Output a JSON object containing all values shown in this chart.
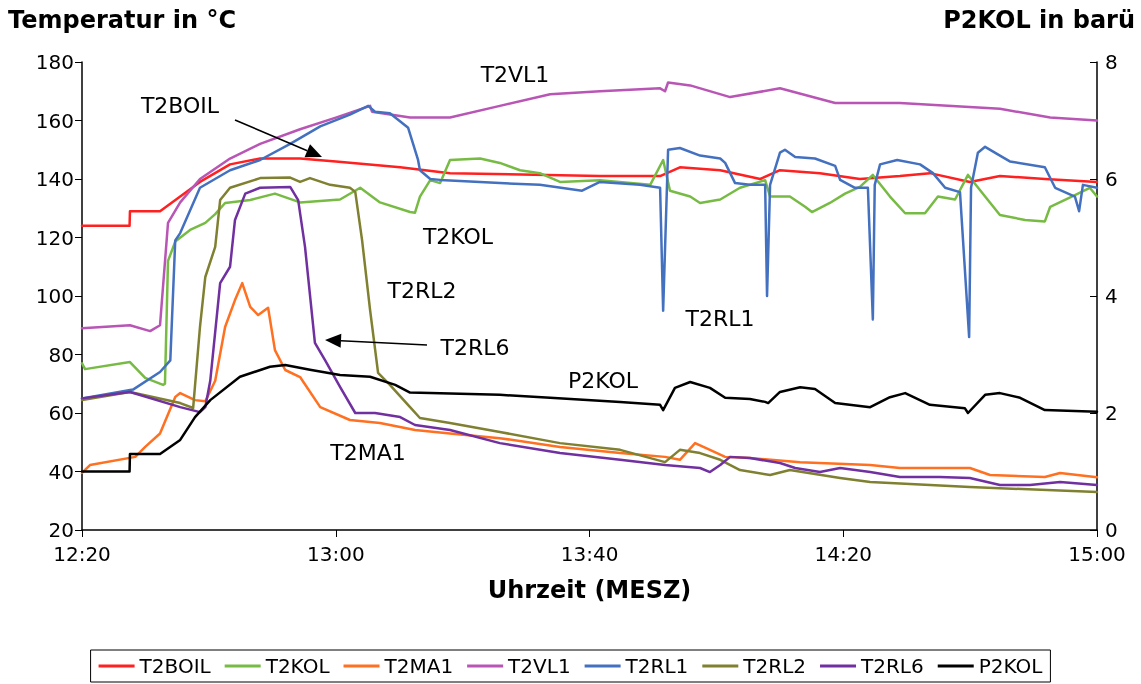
{
  "chart_data": {
    "type": "line",
    "ylabel": "Temperatur in °C",
    "y2label": "P2KOL in barü",
    "xlabel": "Uhrzeit (MESZ)",
    "xlim": [
      12.333,
      15
    ],
    "xticks": [
      {
        "value": 12.333,
        "label": "12:20"
      },
      {
        "value": 13,
        "label": "13:00"
      },
      {
        "value": 13.6667,
        "label": "13:40"
      },
      {
        "value": 14.3333,
        "label": "14:20"
      },
      {
        "value": 15,
        "label": "15:00"
      }
    ],
    "ylim": [
      20,
      180
    ],
    "yticks": [
      20,
      40,
      60,
      80,
      100,
      120,
      140,
      160,
      180
    ],
    "y2lim": [
      0,
      8
    ],
    "y2ticks": [
      0,
      2,
      4,
      6,
      8
    ],
    "grid": false,
    "legend": "bottom",
    "marker": "none",
    "line_style": "solid",
    "annotations": [
      "T2BOIL",
      "T2VL1",
      "T2KOL",
      "T2RL2",
      "T2RL6",
      "T2RL1",
      "P2KOL",
      "T2MA1"
    ],
    "series": [
      {
        "name": "T2BOIL",
        "color": "#ff2020",
        "x": [
          12.333,
          12.458,
          12.459,
          12.538,
          12.591,
          12.643,
          12.722,
          12.801,
          12.906,
          13.0,
          13.169,
          13.3,
          13.694,
          13.852,
          13.904,
          14.01,
          14.115,
          14.167,
          14.272,
          14.377,
          14.482,
          14.561,
          14.666,
          14.745,
          14.863,
          15.0
        ],
        "values": [
          124,
          124,
          129,
          129,
          134,
          139,
          145,
          147,
          147,
          146,
          144,
          142,
          141,
          141,
          144,
          143,
          140,
          143,
          142,
          140,
          141,
          142,
          139,
          141,
          140,
          139
        ]
      },
      {
        "name": "T2KOL",
        "color": "#77bb44",
        "x": [
          12.333,
          12.341,
          12.459,
          12.499,
          12.546,
          12.551,
          12.559,
          12.578,
          12.617,
          12.657,
          12.683,
          12.709,
          12.775,
          12.84,
          12.906,
          13.011,
          13.064,
          13.116,
          13.195,
          13.208,
          13.221,
          13.248,
          13.274,
          13.3,
          13.379,
          13.431,
          13.484,
          13.536,
          13.589,
          13.694,
          13.826,
          13.86,
          13.878,
          13.931,
          13.957,
          14.01,
          14.062,
          14.128,
          14.141,
          14.193,
          14.233,
          14.251,
          14.298,
          14.338,
          14.377,
          14.411,
          14.456,
          14.496,
          14.548,
          14.582,
          14.627,
          14.661,
          14.706,
          14.745,
          14.811,
          14.863,
          14.877,
          14.942,
          14.981,
          15.0
        ],
        "values": [
          77,
          75,
          77.4,
          72,
          69.6,
          70,
          112,
          118.6,
          122.6,
          125,
          128,
          131.8,
          132.8,
          135,
          132,
          133,
          137,
          132,
          128.7,
          128.5,
          134,
          139.6,
          138.6,
          146.5,
          147,
          145.5,
          143,
          142,
          139,
          139.6,
          138,
          146.5,
          136,
          134,
          131.8,
          133,
          137,
          139.6,
          134,
          134,
          130.5,
          128.7,
          131.8,
          135,
          137.3,
          141.4,
          134,
          128.3,
          128.3,
          134,
          133,
          141.4,
          134,
          127.7,
          126,
          125.5,
          130.5,
          134.5,
          137,
          134
        ]
      },
      {
        "name": "T2MA1",
        "color": "#ff7020",
        "x": [
          12.333,
          12.354,
          12.473,
          12.499,
          12.538,
          12.578,
          12.591,
          12.63,
          12.657,
          12.683,
          12.709,
          12.735,
          12.754,
          12.775,
          12.796,
          12.822,
          12.84,
          12.867,
          12.906,
          12.959,
          13.037,
          13.116,
          13.208,
          13.3,
          13.431,
          13.589,
          13.747,
          13.865,
          13.904,
          13.944,
          13.983,
          14.023,
          14.088,
          14.22,
          14.404,
          14.482,
          14.666,
          14.719,
          14.863,
          14.903,
          15.0
        ],
        "values": [
          39.5,
          42.2,
          45,
          48.4,
          53,
          65.5,
          66.8,
          64.4,
          64,
          71,
          89.4,
          98.6,
          104.4,
          96.3,
          93.5,
          96,
          81.5,
          74.7,
          72.3,
          62,
          57.6,
          56.6,
          54.2,
          53,
          51.4,
          48.4,
          46.3,
          45,
          44,
          49.7,
          47.4,
          45,
          44.6,
          43.2,
          42.2,
          41.2,
          41.2,
          38.8,
          38.1,
          39.5,
          38
        ]
      },
      {
        "name": "T2VL1",
        "color": "#b855b5",
        "x": [
          12.333,
          12.459,
          12.512,
          12.538,
          12.559,
          12.591,
          12.643,
          12.722,
          12.801,
          12.906,
          13.0,
          13.09,
          13.095,
          13.195,
          13.3,
          13.431,
          13.563,
          13.694,
          13.852,
          13.865,
          13.873,
          13.931,
          14.036,
          14.167,
          14.312,
          14.482,
          14.745,
          14.877,
          15.0
        ],
        "values": [
          89,
          90,
          88,
          90,
          125,
          132,
          140,
          147,
          152,
          157,
          161,
          165,
          163,
          161,
          161,
          165,
          169,
          170,
          171,
          170,
          173,
          172,
          168,
          171,
          166,
          166,
          164,
          161,
          160
        ]
      },
      {
        "name": "T2RL1",
        "color": "#4470c0",
        "x": [
          12.333,
          12.467,
          12.538,
          12.565,
          12.578,
          12.591,
          12.643,
          12.722,
          12.801,
          12.88,
          12.959,
          13.037,
          13.085,
          13.103,
          13.142,
          13.19,
          13.216,
          13.221,
          13.248,
          13.274,
          13.431,
          13.536,
          13.647,
          13.694,
          13.799,
          13.852,
          13.86,
          13.873,
          13.904,
          13.957,
          14.01,
          14.023,
          14.049,
          14.088,
          14.128,
          14.133,
          14.141,
          14.167,
          14.18,
          14.207,
          14.259,
          14.312,
          14.325,
          14.364,
          14.398,
          14.411,
          14.416,
          14.43,
          14.475,
          14.535,
          14.569,
          14.601,
          14.64,
          14.664,
          14.669,
          14.687,
          14.706,
          14.745,
          14.771,
          14.863,
          14.89,
          14.942,
          14.953,
          14.963,
          15.0
        ],
        "values": [
          65,
          68,
          74,
          78,
          119,
          121.5,
          137,
          143,
          146.5,
          152,
          158,
          162,
          165,
          163,
          162.5,
          157.5,
          146.5,
          143,
          140,
          139.7,
          138.6,
          138,
          136,
          139,
          138,
          137,
          95,
          150,
          150.6,
          148,
          147,
          145.5,
          138.6,
          138,
          138,
          100,
          138,
          149,
          150,
          147.5,
          147,
          144.5,
          139.7,
          137,
          137,
          92,
          138,
          145,
          146.5,
          145,
          142,
          137,
          135.5,
          86,
          137,
          149,
          151,
          148,
          146,
          144,
          137,
          134,
          129,
          138,
          137
        ]
      },
      {
        "name": "T2RL2",
        "color": "#7f8030",
        "x": [
          12.333,
          12.459,
          12.591,
          12.625,
          12.643,
          12.657,
          12.683,
          12.696,
          12.722,
          12.801,
          12.88,
          12.906,
          12.932,
          12.985,
          13.037,
          13.051,
          13.069,
          13.09,
          13.111,
          13.142,
          13.195,
          13.221,
          13.3,
          13.431,
          13.589,
          13.747,
          13.865,
          13.904,
          13.957,
          14.01,
          14.062,
          14.141,
          14.193,
          14.325,
          14.404,
          14.666,
          15.0
        ],
        "values": [
          64.4,
          67.2,
          63.4,
          61.7,
          89.4,
          106.5,
          116.8,
          132.8,
          137,
          140.3,
          140.5,
          139,
          140.3,
          138,
          137,
          135.6,
          119,
          95.2,
          73.7,
          69.6,
          62,
          58.3,
          56.6,
          53.5,
          49.7,
          47.4,
          43.2,
          47.4,
          46.3,
          44,
          40.5,
          38.8,
          40.5,
          37.8,
          36.4,
          34.7,
          33
        ]
      },
      {
        "name": "T2RL6",
        "color": "#7030a0",
        "x": [
          12.333,
          12.459,
          12.591,
          12.643,
          12.657,
          12.67,
          12.696,
          12.722,
          12.735,
          12.762,
          12.801,
          12.88,
          12.901,
          12.919,
          12.945,
          12.972,
          13.011,
          13.051,
          13.103,
          13.169,
          13.208,
          13.3,
          13.431,
          13.589,
          13.747,
          13.865,
          13.957,
          13.983,
          14.01,
          14.036,
          14.088,
          14.167,
          14.207,
          14.272,
          14.325,
          14.404,
          14.482,
          14.587,
          14.666,
          14.745,
          14.824,
          14.903,
          15.0
        ],
        "values": [
          65,
          67.2,
          62,
          60.3,
          62,
          71,
          104.4,
          110,
          126,
          135,
          137,
          137.3,
          132.8,
          116.8,
          84,
          78,
          68.9,
          60,
          60,
          58.6,
          55.9,
          54.2,
          49.7,
          46.3,
          44,
          42.2,
          41.2,
          39.8,
          42.2,
          45,
          44.6,
          42.9,
          41.2,
          39.8,
          41.2,
          39.8,
          38.1,
          38.1,
          37.8,
          35.4,
          35.4,
          36.4,
          35.4
        ]
      },
      {
        "name": "P2KOL",
        "color": "#000000",
        "axis": "y2",
        "x": [
          12.333,
          12.458,
          12.459,
          12.538,
          12.591,
          12.63,
          12.67,
          12.748,
          12.827,
          12.867,
          12.932,
          13.011,
          13.09,
          13.156,
          13.195,
          13.248,
          13.431,
          13.563,
          13.747,
          13.852,
          13.86,
          13.891,
          13.931,
          13.983,
          14.023,
          14.088,
          14.128,
          14.136,
          14.167,
          14.22,
          14.259,
          14.312,
          14.404,
          14.456,
          14.496,
          14.561,
          14.653,
          14.661,
          14.706,
          14.745,
          14.798,
          14.863,
          15.0
        ],
        "values": [
          1,
          1,
          1.3,
          1.3,
          1.54,
          1.93,
          2.22,
          2.62,
          2.79,
          2.82,
          2.74,
          2.65,
          2.62,
          2.48,
          2.35,
          2.34,
          2.31,
          2.26,
          2.19,
          2.14,
          2.05,
          2.43,
          2.53,
          2.43,
          2.26,
          2.24,
          2.19,
          2.17,
          2.36,
          2.44,
          2.41,
          2.17,
          2.1,
          2.27,
          2.34,
          2.14,
          2.08,
          2.0,
          2.31,
          2.34,
          2.26,
          2.05,
          2.02
        ]
      }
    ]
  }
}
